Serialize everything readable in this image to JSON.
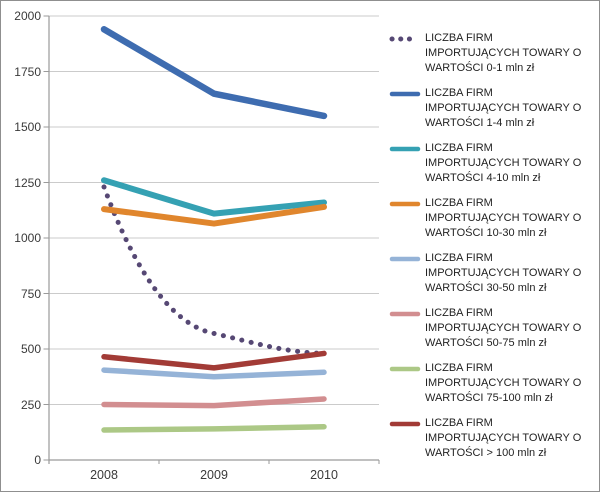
{
  "chart_data": {
    "type": "line",
    "title": "",
    "categories": [
      "2008",
      "2009",
      "2010"
    ],
    "xlabel": "",
    "ylabel": "",
    "ylim": [
      0,
      2000
    ],
    "yticks": [
      0,
      250,
      500,
      750,
      1000,
      1250,
      1500,
      1750,
      2000
    ],
    "grid": true,
    "legend_position": "right",
    "axis_color": "#9a9a9a",
    "grid_color": "#cbcbcb",
    "tick_text_color": "#3a3a3a",
    "legend_text_color": "#1f1f1f",
    "series": [
      {
        "name": "LICZBA FIRM IMPORTUJĄCYCH TOWARY O WARTOŚCI 0-1 mln zł",
        "name_lines": [
          "LICZBA FIRM",
          "IMPORTUJĄCYCH TOWARY O",
          "WARTOŚCI 0-1 mln zł"
        ],
        "values": [
          1230,
          570,
          480
        ],
        "color": "#564874",
        "line_style": "dotted",
        "smooth": true,
        "thickness": 5
      },
      {
        "name": "LICZBA FIRM IMPORTUJĄCYCH TOWARY O WARTOŚCI 1-4 mln zł",
        "name_lines": [
          "LICZBA FIRM",
          "IMPORTUJĄCYCH TOWARY O",
          "WARTOŚCI 1-4 mln zł"
        ],
        "values": [
          1940,
          1650,
          1550
        ],
        "color": "#3e6cb0",
        "line_style": "solid",
        "smooth": false,
        "thickness": 6.5
      },
      {
        "name": "LICZBA FIRM IMPORTUJĄCYCH TOWARY O WARTOŚCI 4-10 mln zł",
        "name_lines": [
          "LICZBA FIRM",
          "IMPORTUJĄCYCH TOWARY O",
          "WARTOŚCI 4-10 mln zł"
        ],
        "values": [
          1260,
          1110,
          1160
        ],
        "color": "#35a1b3",
        "line_style": "solid",
        "smooth": false,
        "thickness": 6
      },
      {
        "name": "LICZBA FIRM IMPORTUJĄCYCH TOWARY O WARTOŚCI 10-30 mln zł",
        "name_lines": [
          "LICZBA FIRM",
          "IMPORTUJĄCYCH TOWARY O",
          "WARTOŚCI 10-30 mln zł"
        ],
        "values": [
          1130,
          1065,
          1140
        ],
        "color": "#e0862d",
        "line_style": "solid",
        "smooth": false,
        "thickness": 6
      },
      {
        "name": "LICZBA FIRM IMPORTUJĄCYCH TOWARY O WARTOŚCI 30-50 mln zł",
        "name_lines": [
          "LICZBA FIRM",
          "IMPORTUJĄCYCH TOWARY O",
          "WARTOŚCI 30-50 mln zł"
        ],
        "values": [
          405,
          375,
          395
        ],
        "color": "#95b3d7",
        "line_style": "solid",
        "smooth": false,
        "thickness": 5.5
      },
      {
        "name": "LICZBA FIRM IMPORTUJĄCYCH TOWARY O WARTOŚCI 50-75 mln zł",
        "name_lines": [
          "LICZBA FIRM",
          "IMPORTUJĄCYCH TOWARY O",
          "WARTOŚCI 50-75 mln zł"
        ],
        "values": [
          250,
          245,
          275
        ],
        "color": "#d28e90",
        "line_style": "solid",
        "smooth": false,
        "thickness": 5.5
      },
      {
        "name": "LICZBA FIRM IMPORTUJĄCYCH TOWARY O WARTOŚCI 75-100 mln zł",
        "name_lines": [
          "LICZBA FIRM",
          "IMPORTUJĄCYCH TOWARY O",
          "WARTOŚCI 75-100 mln zł"
        ],
        "values": [
          135,
          140,
          150
        ],
        "color": "#acc886",
        "line_style": "solid",
        "smooth": false,
        "thickness": 5.5
      },
      {
        "name": "LICZBA FIRM IMPORTUJĄCYCH TOWARY O WARTOŚCI > 100 mln zł",
        "name_lines": [
          "LICZBA FIRM",
          "IMPORTUJĄCYCH TOWARY O",
          "WARTOŚCI > 100 mln zł"
        ],
        "values": [
          465,
          415,
          480
        ],
        "color": "#a23b36",
        "line_style": "solid",
        "smooth": false,
        "thickness": 5.5
      }
    ]
  }
}
